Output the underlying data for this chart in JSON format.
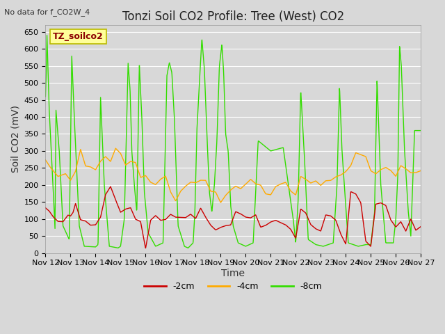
{
  "title": "Tonzi Soil CO2 Profile: Tree (West) CO2",
  "no_data_label": "No data for f_CO2W_4",
  "ylabel": "Soil CO2 (mV)",
  "xlabel": "Time",
  "legend_label": "TZ_soilco2",
  "series_labels": [
    "-2cm",
    "-4cm",
    "-8cm"
  ],
  "series_colors": [
    "#cc0000",
    "#ffaa00",
    "#33dd00"
  ],
  "xlim_days": [
    12,
    27
  ],
  "ylim": [
    0,
    670
  ],
  "yticks": [
    0,
    50,
    100,
    150,
    200,
    250,
    300,
    350,
    400,
    450,
    500,
    550,
    600,
    650
  ],
  "xtick_labels": [
    "Nov 12",
    "Nov 13",
    "Nov 14",
    "Nov 15",
    "Nov 16",
    "Nov 17",
    "Nov 18",
    "Nov 19",
    "Nov 20",
    "Nov 21",
    "Nov 22",
    "Nov 23",
    "Nov 24",
    "Nov 25",
    "Nov 26",
    "Nov 27"
  ],
  "background_color": "#d8d8d8",
  "plot_bg_color": "#d8d8d8",
  "grid_color": "#ffffff",
  "title_fontsize": 12,
  "axis_label_fontsize": 10,
  "tick_fontsize": 8,
  "legend_box_color": "#ffff99",
  "legend_box_edge": "#bbbb00",
  "figsize": [
    6.4,
    4.8
  ],
  "dpi": 100
}
